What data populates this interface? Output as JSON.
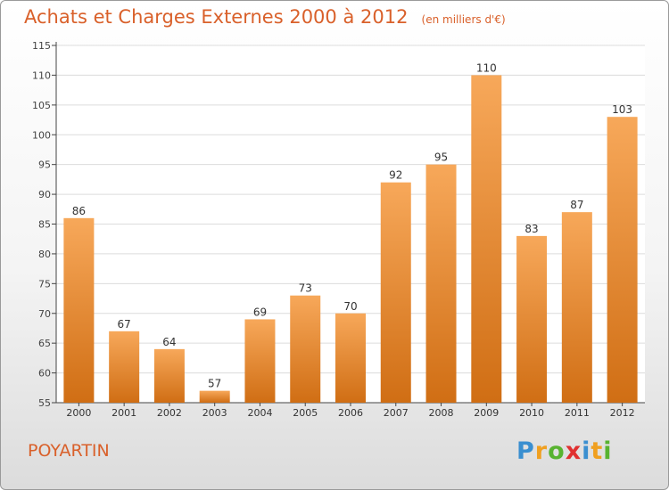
{
  "header": {
    "title": "Achats et Charges Externes 2000 à 2012",
    "subtitle": "(en milliers d'€)"
  },
  "footer": {
    "commune": "POYARTIN",
    "logo_letters": [
      "P",
      "r",
      "o",
      "x",
      "i",
      "t",
      "i"
    ],
    "logo_colors": [
      "#3a8fd0",
      "#f0a020",
      "#58b330",
      "#e03030",
      "#3a8fd0",
      "#f0a020",
      "#58b330"
    ]
  },
  "colors": {
    "bar_top": "#f7a85a",
    "bar_bottom": "#d06e14",
    "accent": "#d9602a",
    "grid": "#dcdcdc"
  },
  "chart_data": {
    "type": "bar",
    "title": "Achats et Charges Externes 2000 à 2012",
    "subtitle": "(en milliers d'€)",
    "categories": [
      "2000",
      "2001",
      "2002",
      "2003",
      "2004",
      "2005",
      "2006",
      "2007",
      "2008",
      "2009",
      "2010",
      "2011",
      "2012"
    ],
    "values": [
      86,
      67,
      64,
      57,
      69,
      73,
      70,
      92,
      95,
      110,
      83,
      87,
      103
    ],
    "ylim": [
      55,
      115
    ],
    "yticks": [
      55,
      60,
      65,
      70,
      75,
      80,
      85,
      90,
      95,
      100,
      105,
      110,
      115
    ],
    "grid": true,
    "data_labels": true
  }
}
